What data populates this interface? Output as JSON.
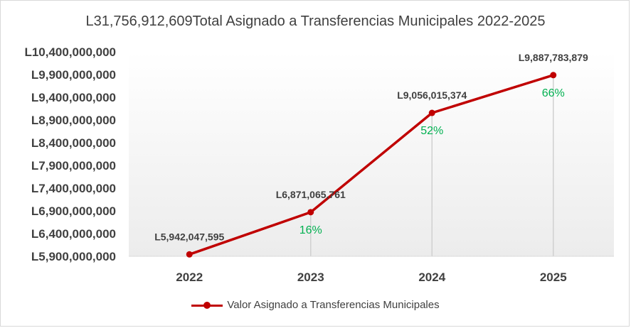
{
  "chart_data": {
    "type": "line",
    "title": "L31,756,912,609Total Asignado a Transferencias Municipales 2022-2025",
    "categories": [
      "2022",
      "2023",
      "2024",
      "2025"
    ],
    "series": [
      {
        "name": "Valor Asignado a Transferencias Municipales",
        "values": [
          5942047595,
          6871065761,
          9056015374,
          9887783879
        ],
        "labels": [
          "L5,942,047,595",
          "L6,871,065,761",
          "L9,056,015,374",
          "L9,887,783,879"
        ],
        "color": "#c00000"
      }
    ],
    "growth_labels": [
      "",
      "16%",
      "52%",
      "66%"
    ],
    "growth_color": "#00b050",
    "ylim": [
      5900000000,
      10400000000
    ],
    "yticks": [
      {
        "value": 5900000000,
        "label": "L5,900,000,000"
      },
      {
        "value": 6400000000,
        "label": "L6,400,000,000"
      },
      {
        "value": 6900000000,
        "label": "L6,900,000,000"
      },
      {
        "value": 7400000000,
        "label": "L7,400,000,000"
      },
      {
        "value": 7900000000,
        "label": "L7,900,000,000"
      },
      {
        "value": 8400000000,
        "label": "L8,400,000,000"
      },
      {
        "value": 8900000000,
        "label": "L8,900,000,000"
      },
      {
        "value": 9400000000,
        "label": "L9,400,000,000"
      },
      {
        "value": 9900000000,
        "label": "L9,900,000,000"
      },
      {
        "value": 10400000000,
        "label": "L10,400,000,000"
      }
    ],
    "xlabel": "",
    "ylabel": "",
    "grid": false,
    "legend_position": "bottom"
  }
}
